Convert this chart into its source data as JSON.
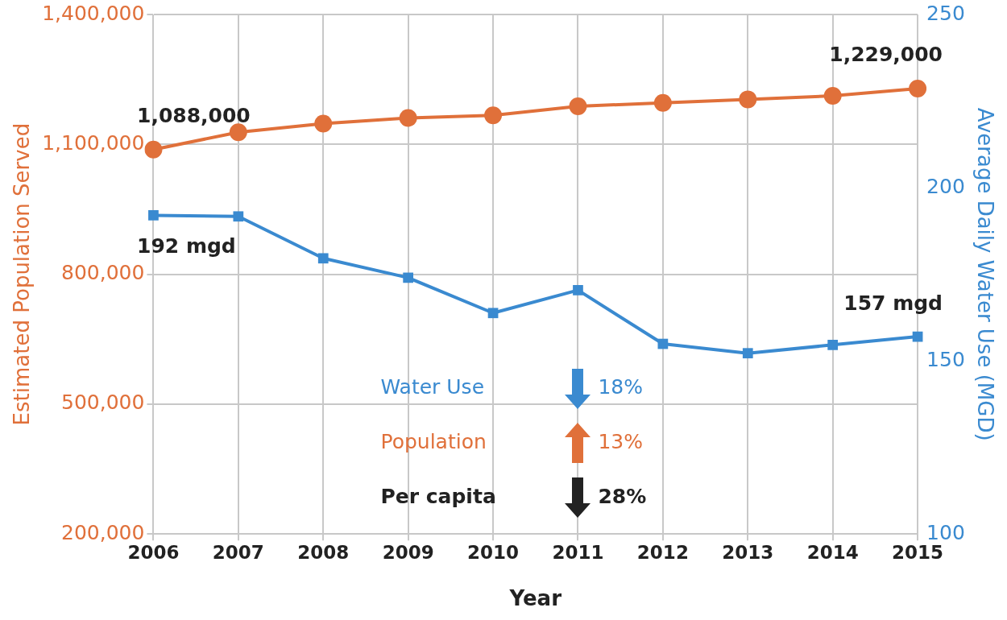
{
  "chart_data": {
    "type": "line",
    "xlabel": "Year",
    "ylabel": "Estimated Population Served",
    "y2label": "Average Daily Water Use (MGD)",
    "categories": [
      "2006",
      "2007",
      "2008",
      "2009",
      "2010",
      "2011",
      "2012",
      "2013",
      "2014",
      "2015"
    ],
    "series": [
      {
        "name": null,
        "color": "#e0703a",
        "marker": "circle",
        "values": [
          1088000,
          1128000,
          1148000,
          1161000,
          1167000,
          1188000,
          1196000,
          1204000,
          1212000,
          1229000
        ],
        "value_labels": [
          "1,088,000",
          null,
          null,
          null,
          null,
          null,
          null,
          null,
          null,
          "1,229,000"
        ]
      },
      {
        "name": null,
        "color": "#3a8ad0",
        "marker": "square",
        "axis": "y2",
        "values": [
          192,
          191.7,
          179.6,
          174,
          163.8,
          170.4,
          154.9,
          152.2,
          154.6,
          157
        ],
        "value_labels": [
          "192 mgd",
          null,
          null,
          null,
          null,
          null,
          null,
          null,
          null,
          "157 mgd"
        ]
      }
    ],
    "ylim": [
      200000,
      1400000
    ],
    "yticks": [
      {
        "value": 200000,
        "label": "200,000"
      },
      {
        "value": 500000,
        "label": "500,000"
      },
      {
        "value": 800000,
        "label": "800,000"
      },
      {
        "value": 1100000,
        "label": "1,100,000"
      },
      {
        "value": 1400000,
        "label": "1,400,000"
      }
    ],
    "y2lim": [
      100,
      250
    ],
    "y2ticks": [
      100,
      150,
      200,
      250
    ],
    "annotations": [
      "Water Use",
      "18%",
      "Population",
      "13%",
      "Per capita",
      "28%"
    ],
    "grid": true,
    "legend": false,
    "line_style": "solid"
  }
}
